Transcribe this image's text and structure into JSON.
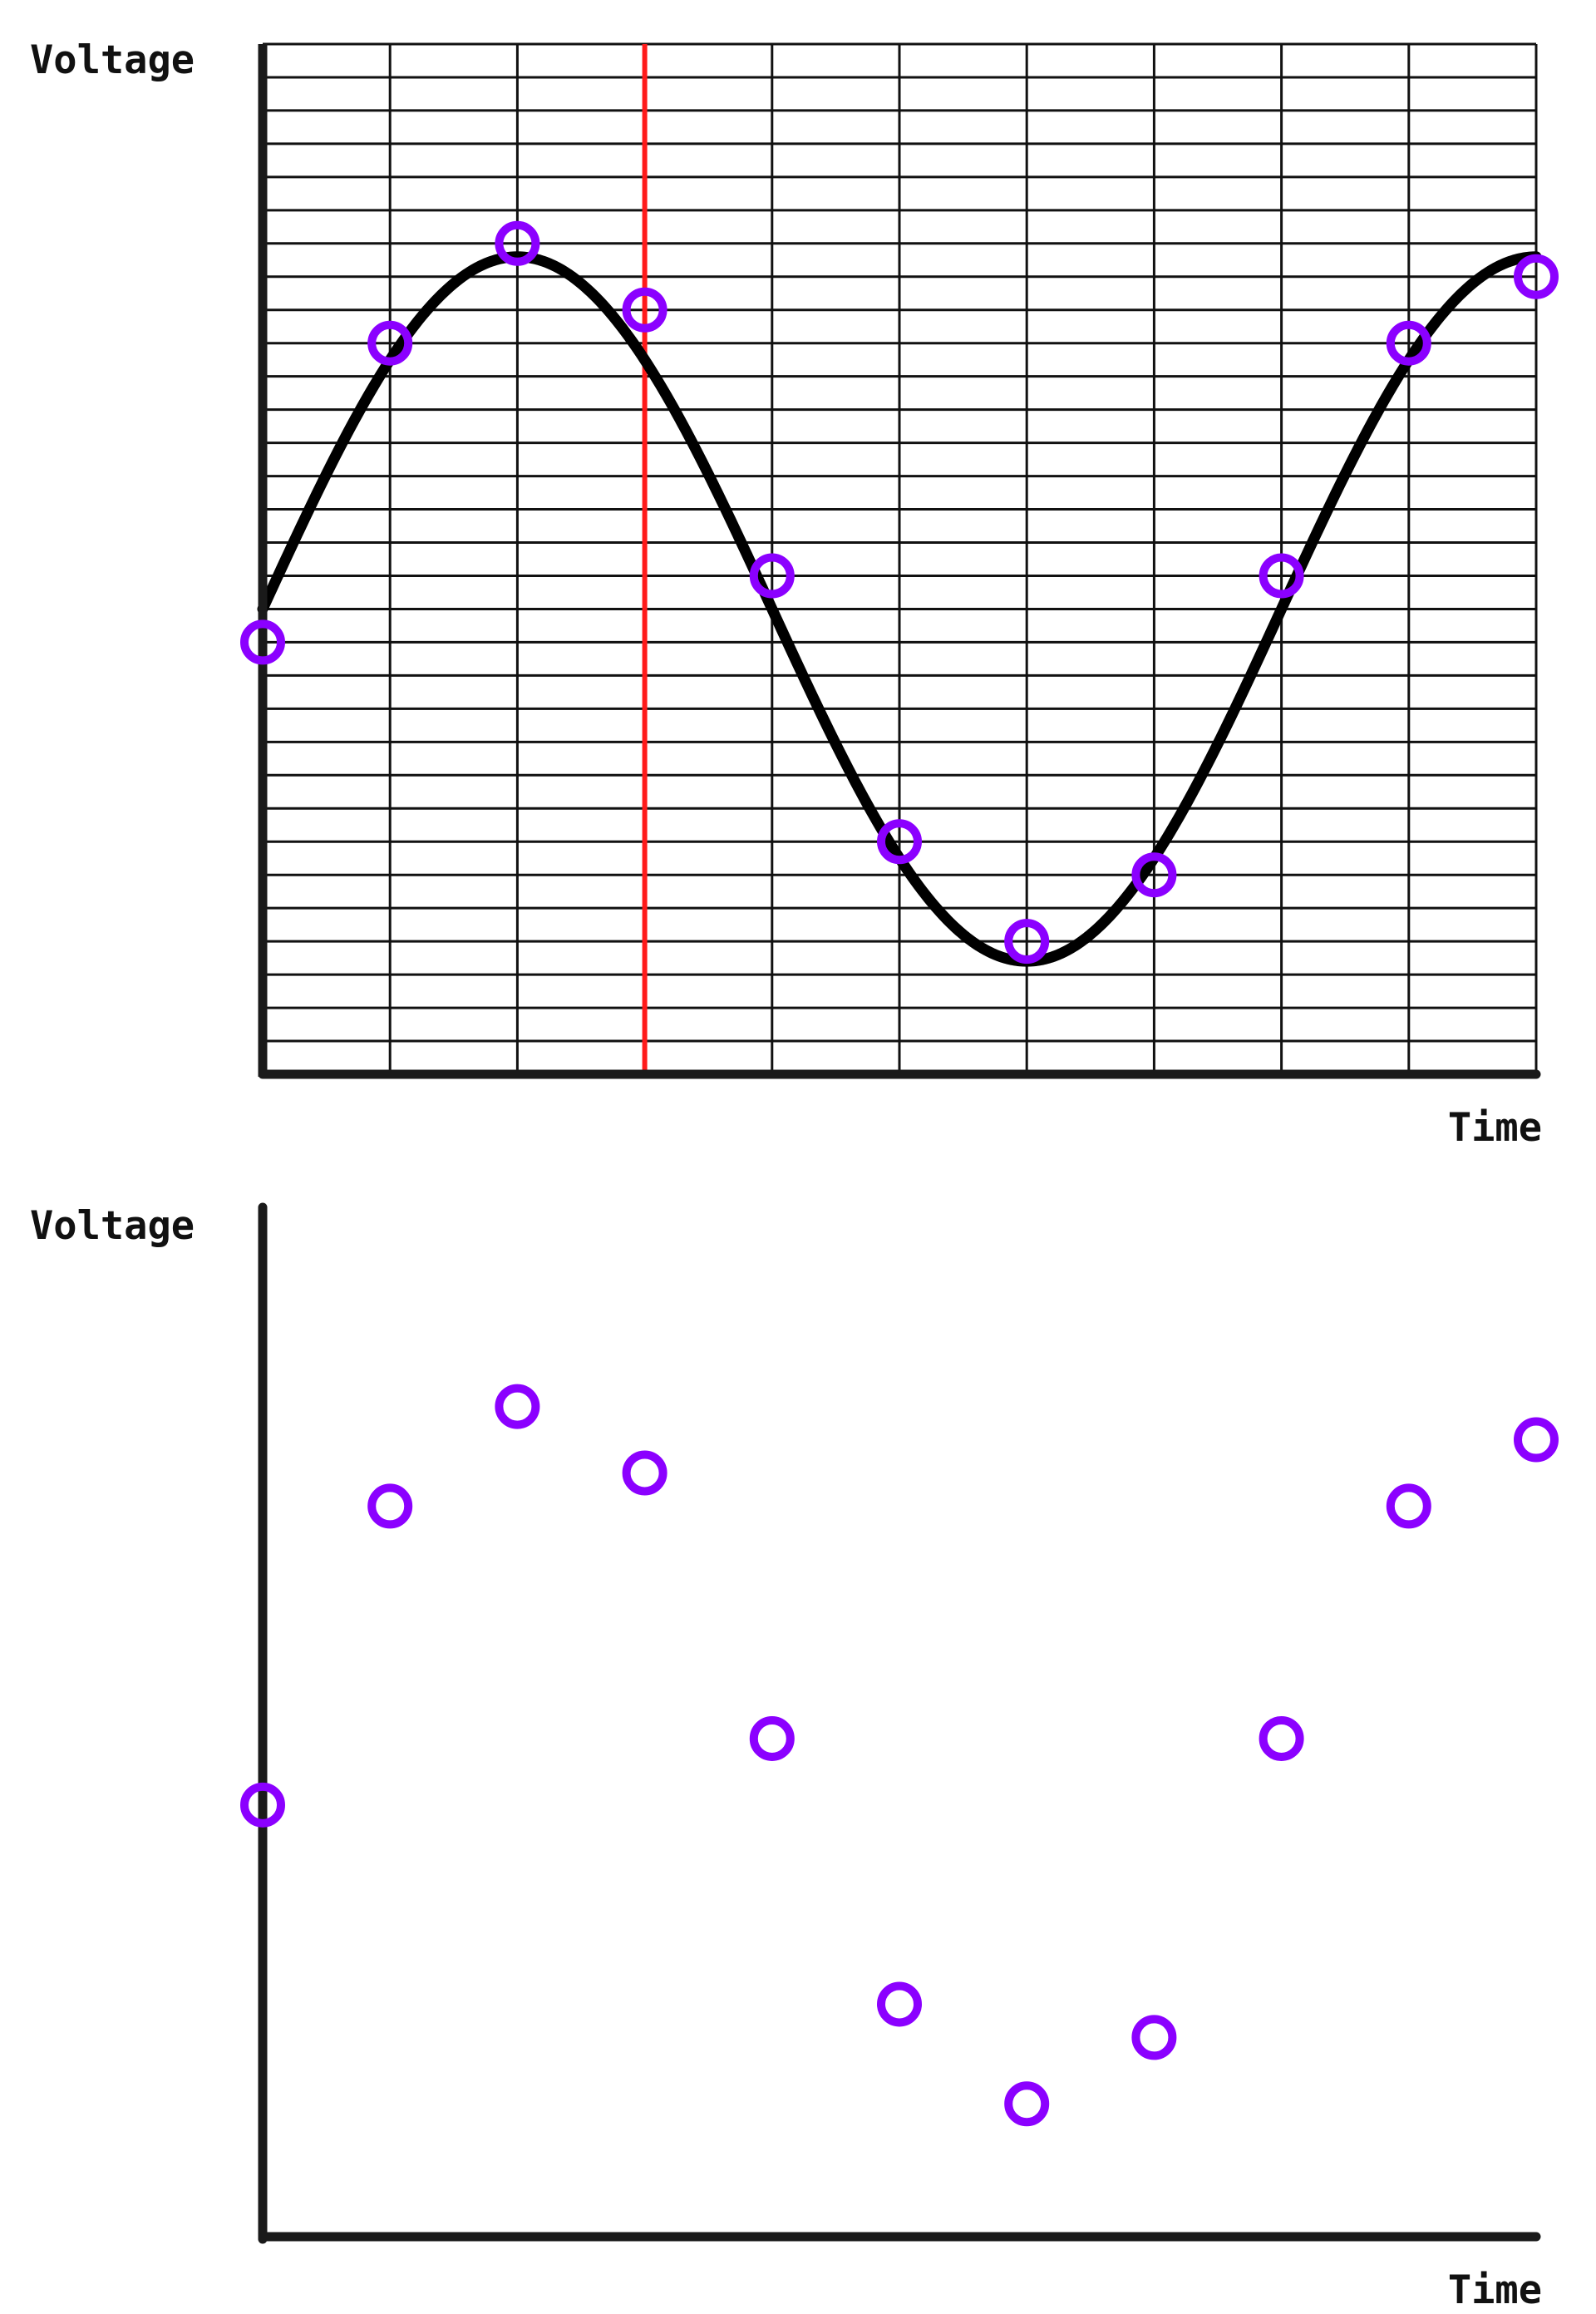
{
  "colors": {
    "background": "#ffffff",
    "ink": "#111111",
    "axis": "#1a1a1a",
    "curve": "#000000",
    "sample_marker": "#8b00ff",
    "cursor_line": "#ff1a1a"
  },
  "chart_data": [
    {
      "type": "line",
      "ylabel": "Voltage",
      "xlabel": "Time",
      "grid": true,
      "grid_columns": 10,
      "grid_rows": 31,
      "xlim": [
        0,
        10
      ],
      "ylim": [
        0,
        31
      ],
      "cursor_x": 3,
      "curve": "sine",
      "samples": [
        {
          "x": 0,
          "y": 13
        },
        {
          "x": 1,
          "y": 22
        },
        {
          "x": 2,
          "y": 25
        },
        {
          "x": 3,
          "y": 23
        },
        {
          "x": 4,
          "y": 15
        },
        {
          "x": 5,
          "y": 7
        },
        {
          "x": 6,
          "y": 4
        },
        {
          "x": 7,
          "y": 6
        },
        {
          "x": 8,
          "y": 15
        },
        {
          "x": 9,
          "y": 22
        },
        {
          "x": 10,
          "y": 24
        }
      ]
    },
    {
      "type": "scatter",
      "ylabel": "Voltage",
      "xlabel": "Time",
      "grid": false,
      "xlim": [
        0,
        10
      ],
      "ylim": [
        0,
        31
      ],
      "points": [
        {
          "x": 0,
          "y": 13
        },
        {
          "x": 1,
          "y": 22
        },
        {
          "x": 2,
          "y": 25
        },
        {
          "x": 3,
          "y": 23
        },
        {
          "x": 4,
          "y": 15
        },
        {
          "x": 5,
          "y": 7
        },
        {
          "x": 6,
          "y": 4
        },
        {
          "x": 7,
          "y": 6
        },
        {
          "x": 8,
          "y": 15
        },
        {
          "x": 9,
          "y": 22
        },
        {
          "x": 10,
          "y": 24
        }
      ]
    }
  ]
}
